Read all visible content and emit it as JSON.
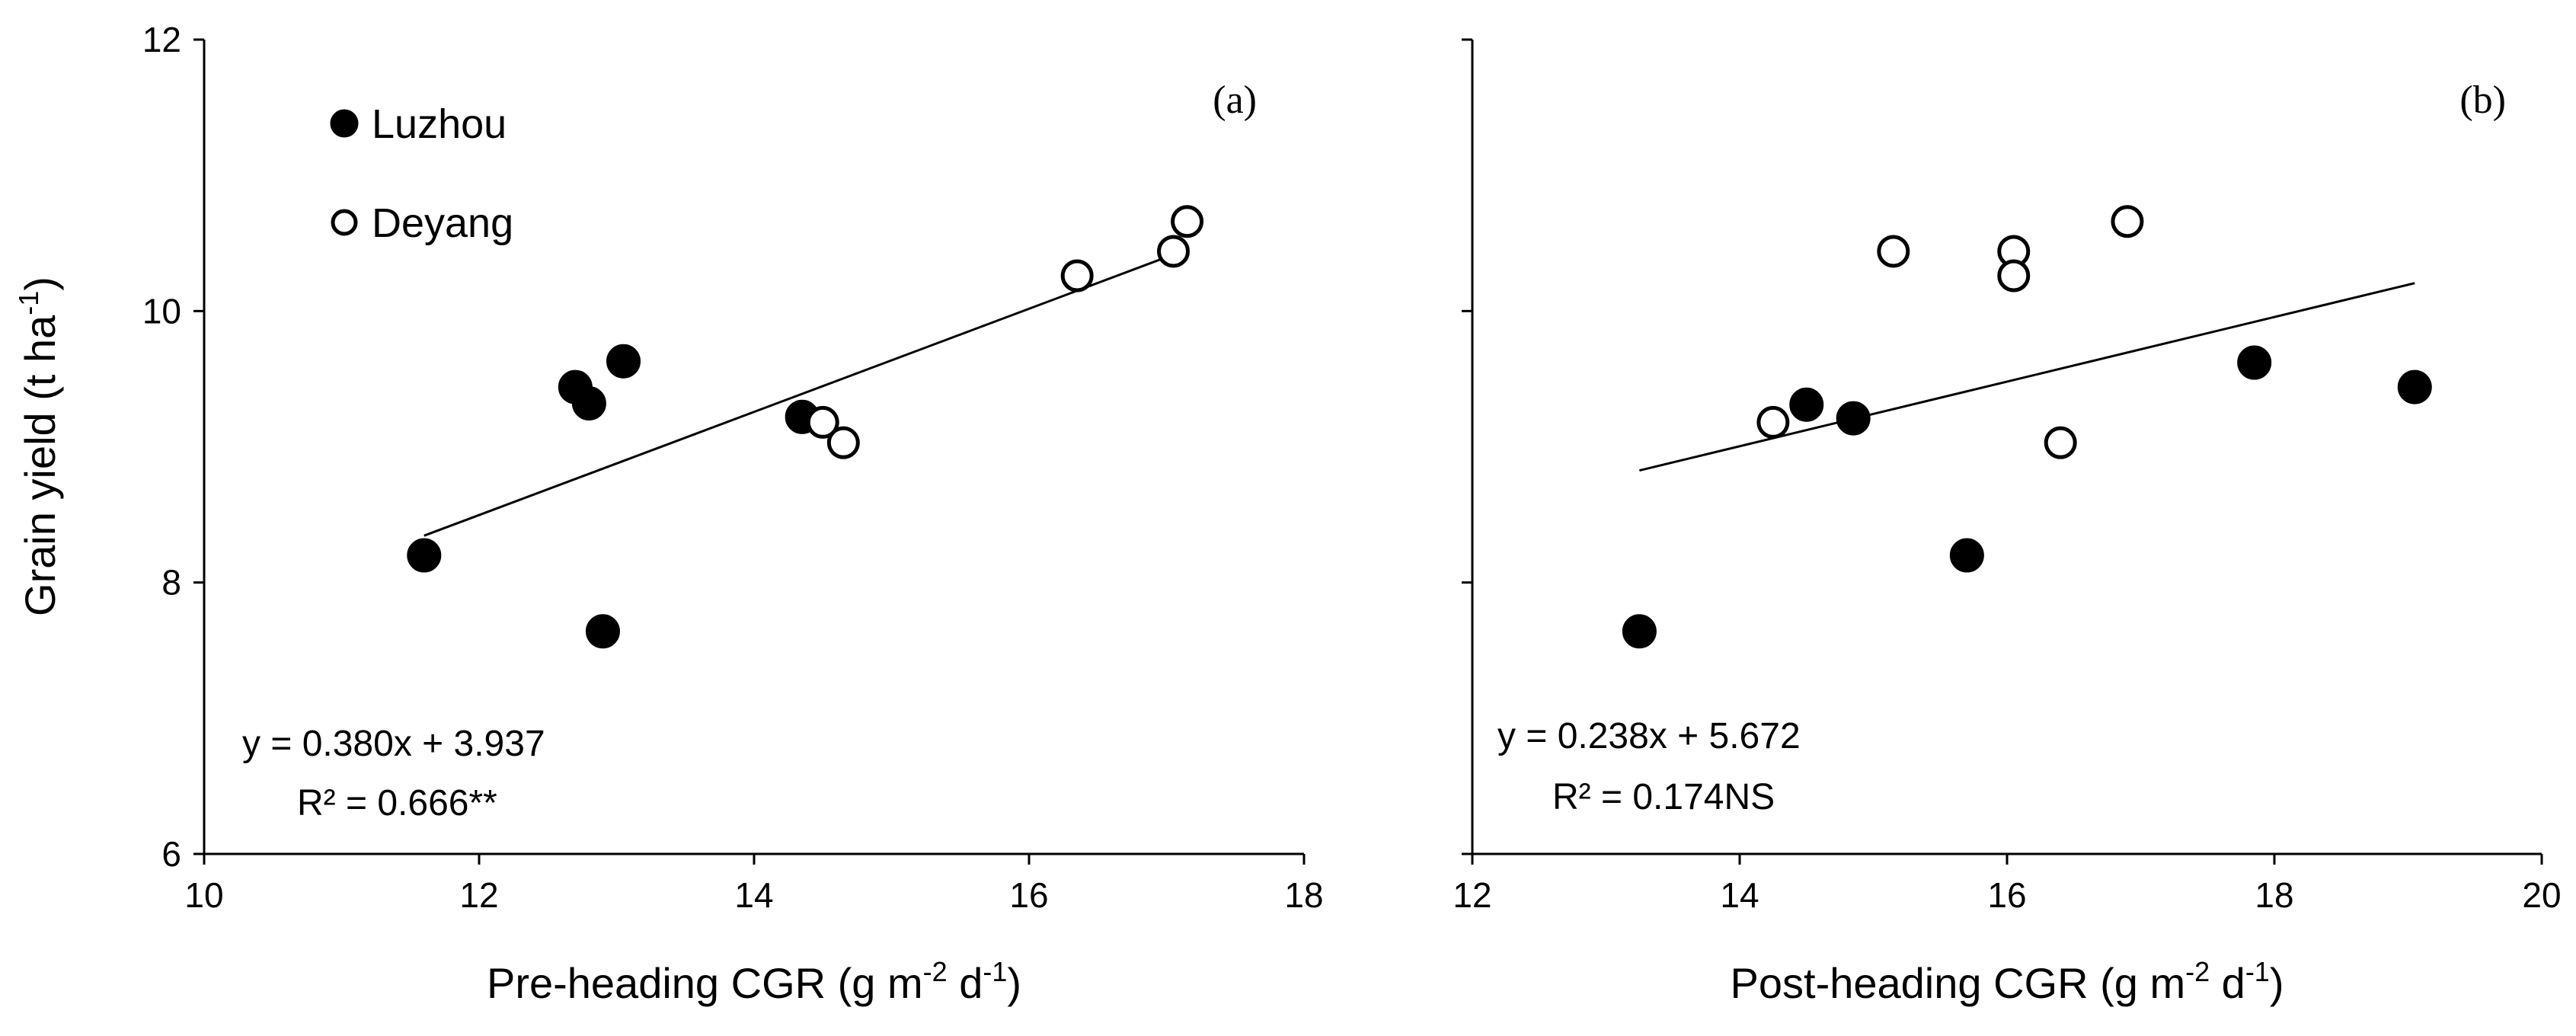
{
  "chart_data": [
    {
      "type": "scatter",
      "panel_label": "(a)",
      "xlabel": "Pre-heading CGR (g m",
      "xlabel_sup1": "-2",
      "xlabel_mid": " d",
      "xlabel_sup2": "-1",
      "xlabel_end": ")",
      "ylabel": "Grain yield (t ha",
      "ylabel_sup": "-1",
      "ylabel_end": ")",
      "xlim": [
        10,
        18
      ],
      "ylim": [
        6,
        12
      ],
      "xticks": [
        "10",
        "12",
        "14",
        "16",
        "18"
      ],
      "yticks": [
        "6",
        "8",
        "10",
        "12"
      ],
      "equation": "y = 0.380x + 3.937",
      "r2": "R² = 0.666**",
      "fit": {
        "slope": 0.38,
        "intercept": 3.937,
        "x_range": [
          11.6,
          17.1
        ]
      },
      "legend": {
        "position": "top-left",
        "entries": [
          "Luzhou",
          "Deyang"
        ]
      },
      "series": [
        {
          "name": "Luzhou",
          "marker": "filled",
          "points": [
            [
              11.6,
              8.2
            ],
            [
              12.7,
              9.44
            ],
            [
              12.8,
              9.32
            ],
            [
              13.05,
              9.63
            ],
            [
              12.9,
              7.64
            ],
            [
              14.35,
              9.22
            ]
          ]
        },
        {
          "name": "Deyang",
          "marker": "open",
          "points": [
            [
              14.5,
              9.18
            ],
            [
              14.65,
              9.03
            ],
            [
              16.35,
              10.26
            ],
            [
              17.05,
              10.44
            ],
            [
              17.15,
              10.66
            ]
          ]
        }
      ]
    },
    {
      "type": "scatter",
      "panel_label": "(b)",
      "xlabel": "Post-heading CGR (g m",
      "xlabel_sup1": "-2",
      "xlabel_mid": " d",
      "xlabel_sup2": "-1",
      "xlabel_end": ")",
      "xlim": [
        12,
        20
      ],
      "ylim": [
        6,
        12
      ],
      "xticks": [
        "12",
        "14",
        "16",
        "18",
        "20"
      ],
      "equation": "y = 0.238x + 5.672",
      "r2": "R² = 0.174NS",
      "fit": {
        "slope": 0.238,
        "intercept": 5.672,
        "x_range": [
          13.25,
          19.05
        ]
      },
      "series": [
        {
          "name": "Luzhou",
          "marker": "filled",
          "points": [
            [
              13.25,
              7.64
            ],
            [
              14.5,
              9.31
            ],
            [
              14.85,
              9.21
            ],
            [
              15.7,
              8.2
            ],
            [
              17.85,
              9.62
            ],
            [
              19.05,
              9.44
            ]
          ]
        },
        {
          "name": "Deyang",
          "marker": "open",
          "points": [
            [
              14.25,
              9.18
            ],
            [
              15.15,
              10.44
            ],
            [
              16.05,
              10.44
            ],
            [
              16.05,
              10.26
            ],
            [
              16.4,
              9.03
            ],
            [
              16.9,
              10.66
            ]
          ]
        }
      ]
    }
  ]
}
